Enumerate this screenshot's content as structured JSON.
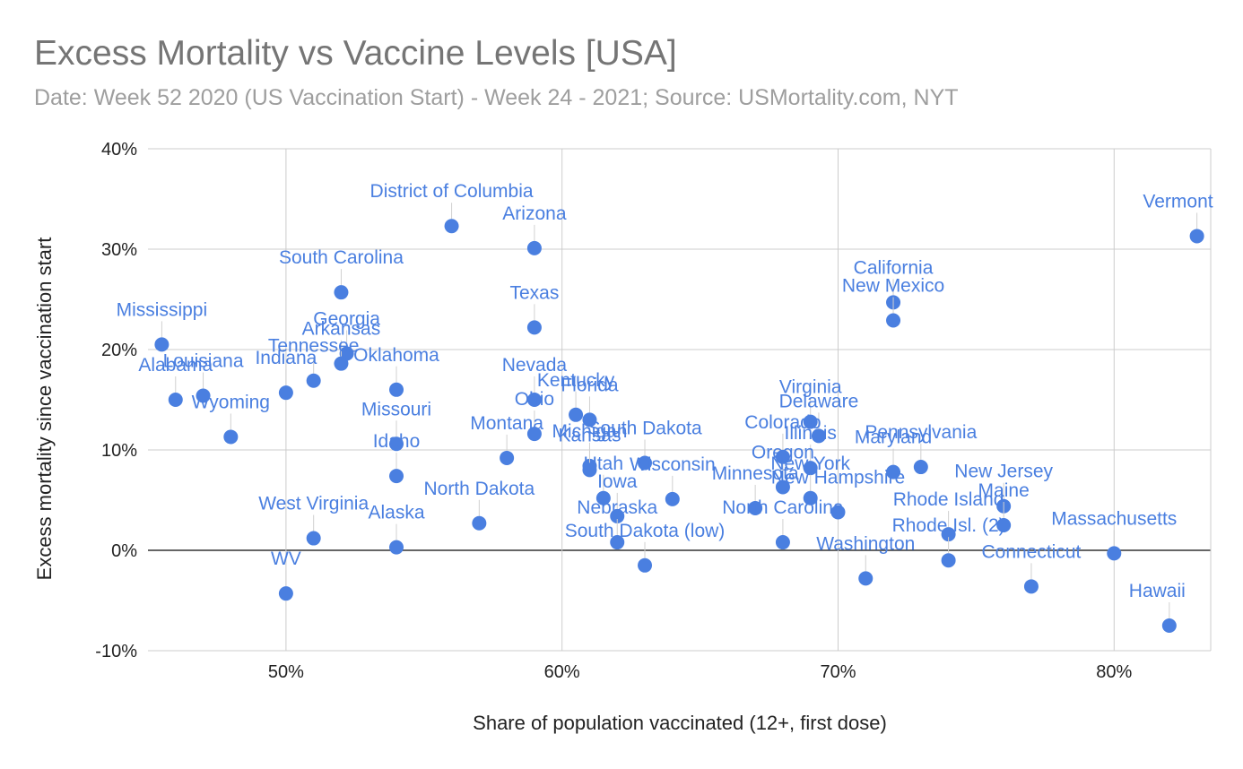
{
  "chart_data": {
    "type": "scatter",
    "title": "Excess Mortality vs Vaccine Levels [USA]",
    "subtitle": "Date: Week 52 2020 (US Vaccination Start) - Week 24 - 2021; Source: USMortality.com, NYT",
    "xlabel": "Share of population vaccinated (12+, first dose)",
    "ylabel": "Excess mortality since vaccination start",
    "xlim": [
      45,
      83.5
    ],
    "ylim": [
      -10,
      40
    ],
    "x_ticks": [
      50,
      60,
      70,
      80
    ],
    "x_tick_labels": [
      "50%",
      "60%",
      "70%",
      "80%"
    ],
    "y_ticks": [
      -10,
      0,
      10,
      20,
      30,
      40
    ],
    "y_tick_labels": [
      "-10%",
      "0%",
      "10%",
      "20%",
      "30%",
      "40%"
    ],
    "grid": true,
    "color": "#4a7fe0",
    "points": [
      {
        "label": "District of Columbia",
        "x": 56,
        "y": 32.3
      },
      {
        "label": "Arizona",
        "x": 59,
        "y": 30.1
      },
      {
        "label": "Vermont",
        "x": 83,
        "y": 31.3
      },
      {
        "label": "South Carolina",
        "x": 52,
        "y": 25.7
      },
      {
        "label": "California",
        "x": 72,
        "y": 24.7
      },
      {
        "label": "New Mexico",
        "x": 72,
        "y": 22.9
      },
      {
        "label": "Texas",
        "x": 59,
        "y": 22.2
      },
      {
        "label": "Mississippi",
        "x": 45.5,
        "y": 20.5
      },
      {
        "label": "Georgia",
        "x": 52.2,
        "y": 19.6
      },
      {
        "label": "Arkansas",
        "x": 52,
        "y": 18.6
      },
      {
        "label": "Tennessee",
        "x": 51,
        "y": 16.9
      },
      {
        "label": "Oklahoma",
        "x": 54,
        "y": 16.0
      },
      {
        "label": "Alabama",
        "x": 46,
        "y": 15.0
      },
      {
        "label": "Louisiana",
        "x": 47,
        "y": 15.4
      },
      {
        "label": "Wyoming",
        "x": 48,
        "y": 11.3
      },
      {
        "label": "Indiana",
        "x": 50,
        "y": 15.7
      },
      {
        "label": "Nevada",
        "x": 59,
        "y": 15.0
      },
      {
        "label": "Kentucky",
        "x": 60.5,
        "y": 13.5
      },
      {
        "label": "Florida",
        "x": 61,
        "y": 13.0
      },
      {
        "label": "Ohio",
        "x": 59,
        "y": 11.6
      },
      {
        "label": "Missouri",
        "x": 54,
        "y": 10.6
      },
      {
        "label": "Michigan",
        "x": 61,
        "y": 8.4
      },
      {
        "label": "South Dakota",
        "x": 63,
        "y": 8.7
      },
      {
        "label": "Kansas",
        "x": 61,
        "y": 8.0
      },
      {
        "label": "Virginia",
        "x": 69,
        "y": 12.8
      },
      {
        "label": "Delaware",
        "x": 69.3,
        "y": 11.4
      },
      {
        "label": "Colorado",
        "x": 68,
        "y": 9.3
      },
      {
        "label": "Pennsylvania",
        "x": 73,
        "y": 8.3
      },
      {
        "label": "Maryland",
        "x": 72,
        "y": 7.8
      },
      {
        "label": "Illinois",
        "x": 69,
        "y": 8.2
      },
      {
        "label": "Oregon",
        "x": 68,
        "y": 6.3
      },
      {
        "label": "New York",
        "x": 69,
        "y": 5.2
      },
      {
        "label": "New Jersey",
        "x": 76,
        "y": 4.4
      },
      {
        "label": "Maine",
        "x": 76,
        "y": 2.5
      },
      {
        "label": "Montana",
        "x": 58,
        "y": 9.2
      },
      {
        "label": "Idaho",
        "x": 54,
        "y": 7.4
      },
      {
        "label": "Utah",
        "x": 61.5,
        "y": 5.2
      },
      {
        "label": "Wisconsin",
        "x": 64,
        "y": 5.1
      },
      {
        "label": "Iowa",
        "x": 62,
        "y": 3.4
      },
      {
        "label": "Minnesota",
        "x": 67,
        "y": 4.2
      },
      {
        "label": "New Hampshire",
        "x": 70,
        "y": 3.8
      },
      {
        "label": "North Dakota",
        "x": 57,
        "y": 2.7
      },
      {
        "label": "Nebraska",
        "x": 62,
        "y": 0.8
      },
      {
        "label": "Rhode Island",
        "x": 74,
        "y": 1.6
      },
      {
        "label": "Massachusetts",
        "x": 80,
        "y": -0.3
      },
      {
        "label": "Washington",
        "x": 71,
        "y": -2.8
      },
      {
        "label": "Connecticut",
        "x": 77,
        "y": -3.6
      },
      {
        "label": "West Virginia",
        "x": 51,
        "y": 1.2
      },
      {
        "label": "South Dakota (low)",
        "x": 63,
        "y": -1.5
      },
      {
        "label": "Hawaii",
        "x": 82,
        "y": -7.5
      },
      {
        "label": "Alaska",
        "x": 54,
        "y": 0.3
      },
      {
        "label": "North Carolina",
        "x": 68,
        "y": 0.8
      },
      {
        "label": "Rhode Isl. (2)",
        "x": 74,
        "y": -1.0
      },
      {
        "label": "WV",
        "x": 50,
        "y": -4.3
      }
    ]
  }
}
